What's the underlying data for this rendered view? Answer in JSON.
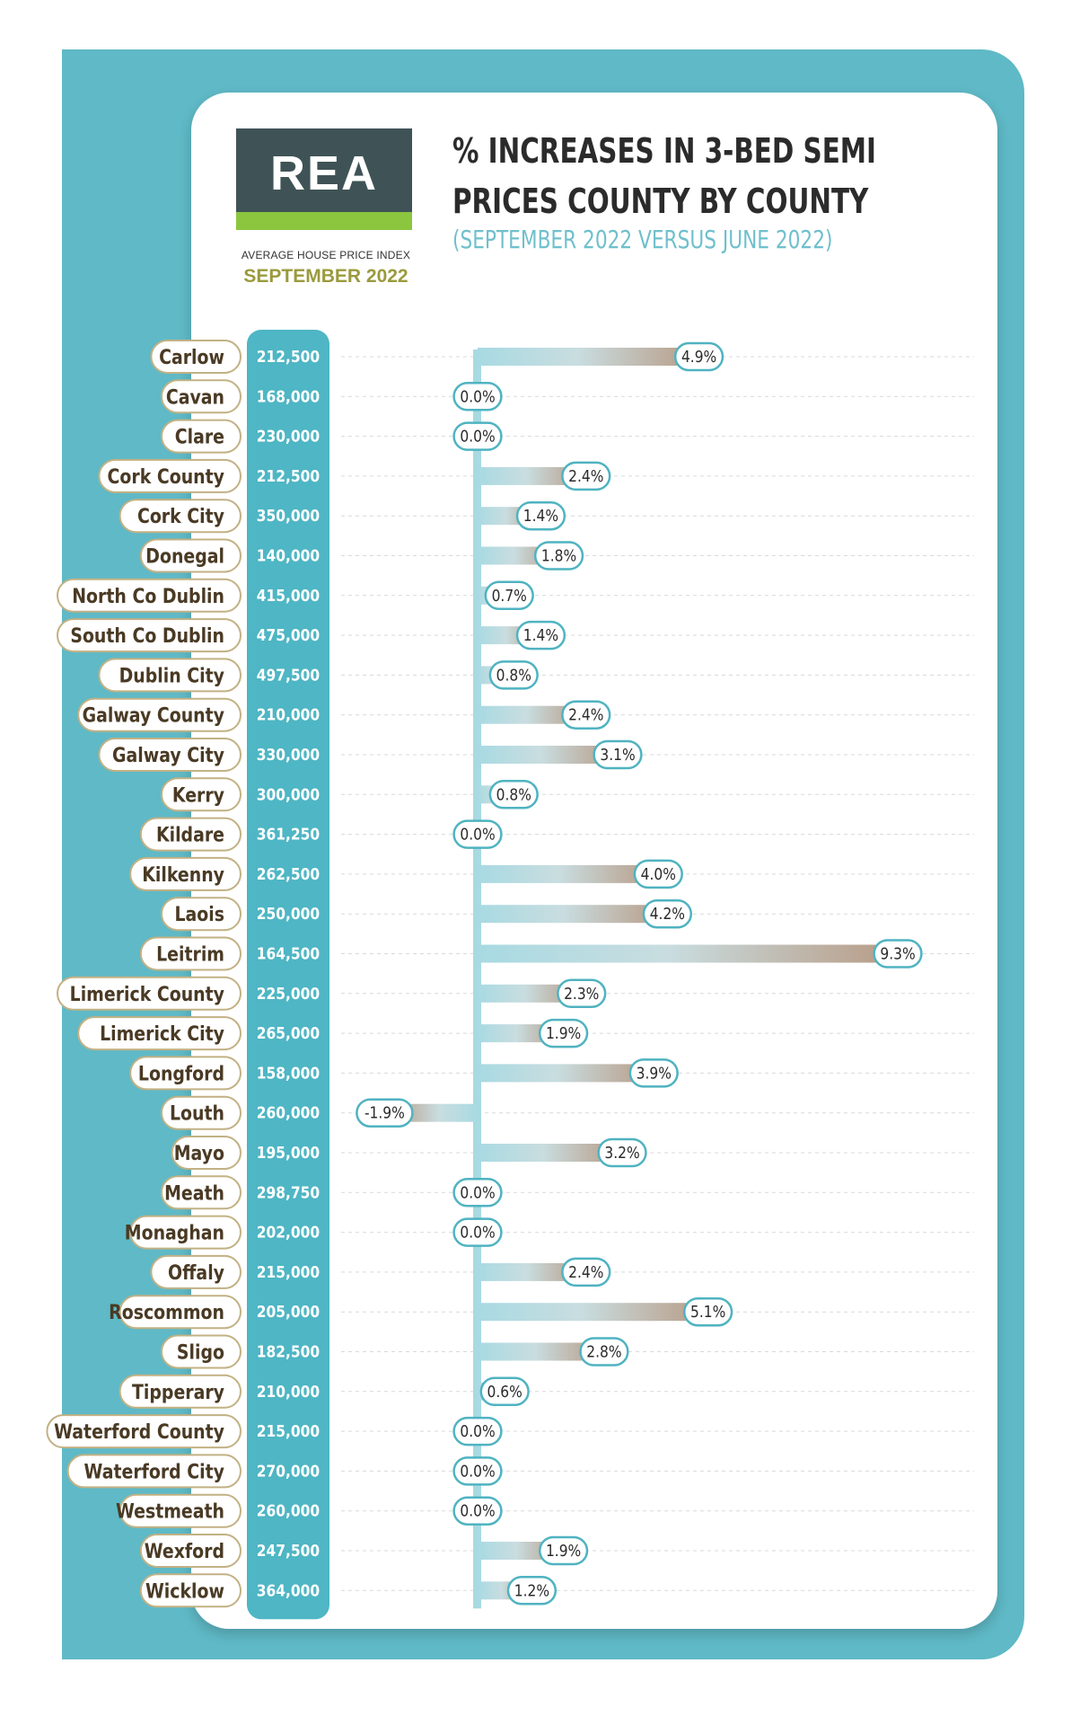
{
  "logo": {
    "text": "REA"
  },
  "index": {
    "label": "AVERAGE HOUSE PRICE INDEX",
    "month": "SEPTEMBER 2022"
  },
  "chart_data": {
    "type": "bar",
    "orientation": "horizontal",
    "title": "% INCREASES IN 3-BED SEMI PRICES COUNTY BY COUNTY",
    "subtitle": "(SEPTEMBER 2022 VERSUS JUNE 2022)",
    "categories": [
      "Carlow",
      "Cavan",
      "Clare",
      "Cork County",
      "Cork City",
      "Donegal",
      "North Co Dublin",
      "South Co Dublin",
      "Dublin City",
      "Galway County",
      "Galway City",
      "Kerry",
      "Kildare",
      "Kilkenny",
      "Laois",
      "Leitrim",
      "Limerick County",
      "Limerick City",
      "Longford",
      "Louth",
      "Mayo",
      "Meath",
      "Monaghan",
      "Offaly",
      "Roscommon",
      "Sligo",
      "Tipperary",
      "Waterford County",
      "Waterford City",
      "Westmeath",
      "Wexford",
      "Wicklow"
    ],
    "prices": [
      "212,500",
      "168,000",
      "230,000",
      "212,500",
      "350,000",
      "140,000",
      "415,000",
      "475,000",
      "497,500",
      "210,000",
      "330,000",
      "300,000",
      "361,250",
      "262,500",
      "250,000",
      "164,500",
      "225,000",
      "265,000",
      "158,000",
      "260,000",
      "195,000",
      "298,750",
      "202,000",
      "215,000",
      "205,000",
      "182,500",
      "210,000",
      "215,000",
      "270,000",
      "260,000",
      "247,500",
      "364,000"
    ],
    "values": [
      4.9,
      0.0,
      0.0,
      2.4,
      1.4,
      1.8,
      0.7,
      1.4,
      0.8,
      2.4,
      3.1,
      0.8,
      0.0,
      4.0,
      4.2,
      9.3,
      2.3,
      1.9,
      3.9,
      -1.9,
      3.2,
      0.0,
      0.0,
      2.4,
      5.1,
      2.8,
      0.6,
      0.0,
      0.0,
      0.0,
      1.9,
      1.2
    ],
    "value_labels": [
      "4.9%",
      "0.0%",
      "0.0%",
      "2.4%",
      "1.4%",
      "1.8%",
      "0.7%",
      "1.4%",
      "0.8%",
      "2.4%",
      "3.1%",
      "0.8%",
      "0.0%",
      "4.0%",
      "4.2%",
      "9.3%",
      "2.3%",
      "1.9%",
      "3.9%",
      "-1.9%",
      "3.2%",
      "0.0%",
      "0.0%",
      "2.4%",
      "5.1%",
      "2.8%",
      "0.6%",
      "0.0%",
      "0.0%",
      "0.0%",
      "1.9%",
      "1.2%"
    ],
    "unit": "%",
    "colors": {
      "bar_start": "#a8dae2",
      "bar_end": "#b89a84",
      "label_border": "#4fb3c1",
      "price_column": "#4eb6c4",
      "name_border": "#c2b184"
    }
  }
}
